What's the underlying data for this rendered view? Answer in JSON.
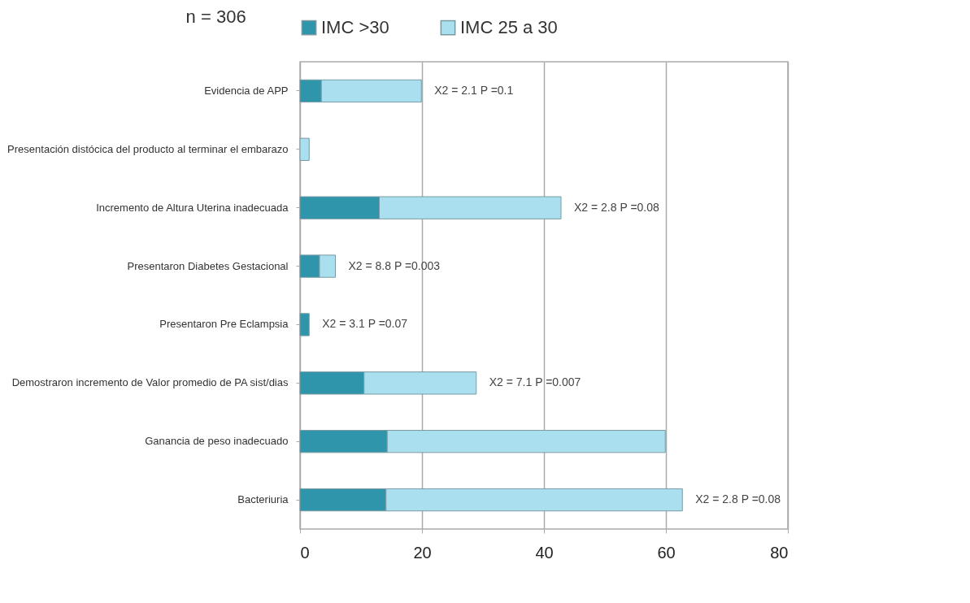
{
  "chart_data": {
    "type": "bar",
    "orientation": "horizontal",
    "stacked": true,
    "title": "n = 306",
    "categories": [
      "Evidencia de APP",
      "Presentación distócica del producto al terminar el embarazo",
      "Incremento de Altura Uterina inadecuada",
      "Presentaron Diabetes Gestacional",
      "Presentaron Pre Eclampsia",
      "Demostraron incremento de Valor promedio de PA sist/dias",
      "Ganancia de peso inadecuado",
      "Bacteriuria"
    ],
    "series": [
      {
        "name": "IMC >30",
        "color": "#2f95ab",
        "values": [
          3.5,
          0,
          13,
          3.2,
          1.5,
          10.5,
          14.3,
          14.1
        ]
      },
      {
        "name": "IMC 25 a 30",
        "color": "#a9dfee",
        "values": [
          16.4,
          1.5,
          29.8,
          2.6,
          0,
          18.4,
          45.6,
          48.6
        ]
      }
    ],
    "xlim": [
      0,
      80
    ],
    "xticks": [
      0,
      20,
      40,
      60,
      80
    ],
    "grid": "x",
    "legend": "top",
    "annotations": [
      {
        "text": "X2 = 2.1   P =0.1",
        "x": 19.9,
        "y": "Evidencia de APP"
      },
      {
        "text": "X2 = 2.8   P =0.08",
        "x": 42.8,
        "y": "Incremento de Altura Uterina inadecuada"
      },
      {
        "text": "X2 = 8.8   P =0.003",
        "x": 5.8,
        "y": "Presentaron Diabetes Gestacional"
      },
      {
        "text": "X2 = 3.1   P =0.07",
        "x": 1.5,
        "y": "Presentaron Pre Eclampsia"
      },
      {
        "text": "X2 = 7.1   P =0.007",
        "x": 28.9,
        "y": "Demostraron incremento de Valor promedio de PA sist/dias"
      },
      {
        "text": "X2 = 2.8   P =0.08",
        "x": 62.7,
        "y": "Bacteriuria"
      }
    ]
  }
}
